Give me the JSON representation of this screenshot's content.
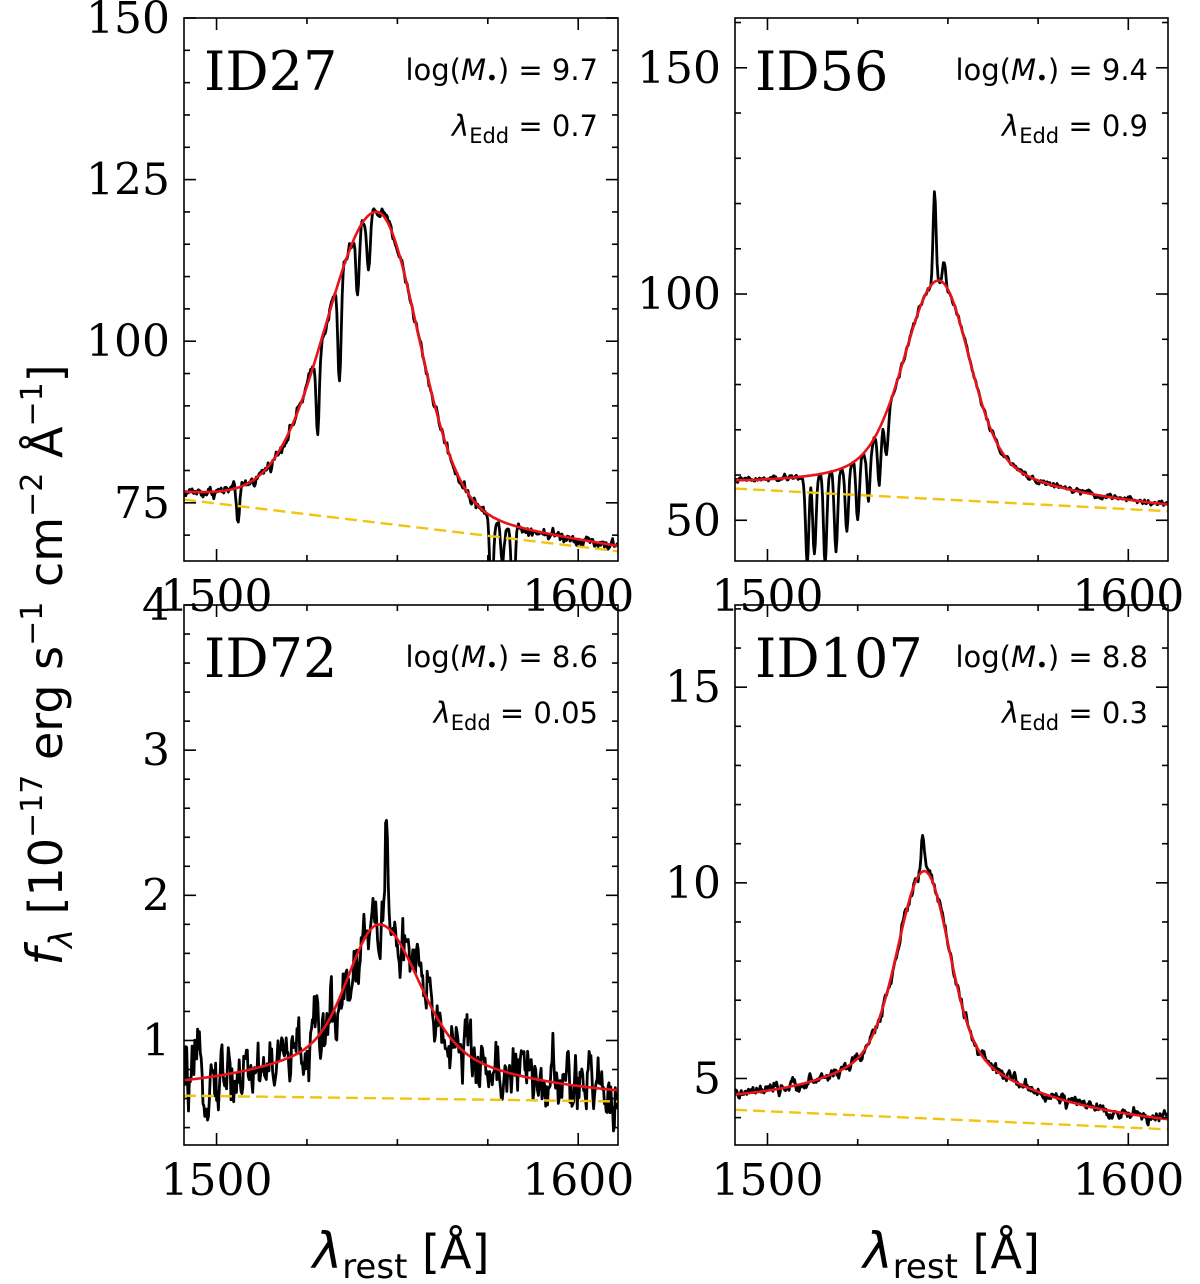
{
  "figure": {
    "ylabel": "f_λ [10^{-17} erg s^{-1} cm^{-2} Å^{-1}]",
    "ylabel_parts": {
      "sym": "f",
      "sym_sub": "λ",
      "open": " [10",
      "exp1": "−17",
      "mid1": " erg s",
      "exp2": "−1",
      "mid2": " cm",
      "exp3": "−2",
      "mid3": " Å",
      "exp4": "−1",
      "close": "]"
    },
    "xlabel_parts": {
      "sym": "λ",
      "sub": "rest",
      "unit": " [Å]"
    },
    "colors": {
      "spectrum": "#000000",
      "fit": "#e8141a",
      "continuum": "#f2c411"
    }
  },
  "chart_data": [
    {
      "type": "line",
      "panel_id": "ID27",
      "annotation": {
        "mass_label": "log(M•) = 9.7",
        "edd_label": "λEdd = 0.7",
        "mass": "9.7",
        "edd": "0.7"
      },
      "xlim": [
        1491,
        1611
      ],
      "ylim": [
        66,
        150
      ],
      "xticks": [
        1500,
        1600
      ],
      "xtick_labels": [
        "1500",
        "1600"
      ],
      "yticks": [
        75,
        100,
        125,
        150
      ],
      "ytick_labels": [
        "75",
        "100",
        "125",
        "150"
      ],
      "xlabel": "",
      "ylabel": "",
      "line": {
        "center": 1544.5,
        "peak": 120,
        "sigma_l": 14,
        "sigma_r": 11,
        "wing_amp": 5,
        "wing_w": 30,
        "skew": 0
      },
      "continuum": [
        [
          1491,
          75.5
        ],
        [
          1611,
          67.5
        ]
      ],
      "noise": 1.2,
      "absorption": [
        [
          1506,
          5
        ],
        [
          1528,
          12
        ],
        [
          1534,
          16
        ],
        [
          1539,
          10
        ],
        [
          1542,
          8
        ],
        [
          1576,
          14
        ],
        [
          1579,
          7
        ],
        [
          1582,
          14
        ]
      ],
      "spikes": []
    },
    {
      "type": "line",
      "panel_id": "ID56",
      "annotation": {
        "mass_label": "log(M•) = 9.4",
        "edd_label": "λEdd = 0.9",
        "mass": "9.4",
        "edd": "0.9"
      },
      "xlim": [
        1491,
        1611
      ],
      "ylim": [
        41,
        161
      ],
      "xticks": [
        1500,
        1600
      ],
      "xtick_labels": [
        "1500",
        "1600"
      ],
      "yticks": [
        50,
        100,
        150
      ],
      "ytick_labels": [
        "50",
        "100",
        "150"
      ],
      "xlabel": "",
      "ylabel": "",
      "line": {
        "center": 1547.5,
        "peak": 103,
        "sigma_l": 9,
        "sigma_r": 8,
        "wing_amp": 12,
        "wing_w": 24,
        "skew": 0
      },
      "continuum": [
        [
          1491,
          57
        ],
        [
          1611,
          52
        ]
      ],
      "noise": 0.9,
      "absorption": [
        [
          1511,
          20
        ],
        [
          1513,
          18
        ],
        [
          1516,
          20
        ],
        [
          1519,
          18
        ],
        [
          1522,
          15
        ],
        [
          1525,
          14
        ],
        [
          1528,
          12
        ],
        [
          1531,
          12
        ],
        [
          1533,
          10
        ]
      ],
      "spikes": [
        [
          1546.3,
          20
        ],
        [
          1549,
          5
        ]
      ]
    },
    {
      "type": "line",
      "panel_id": "ID72",
      "annotation": {
        "mass_label": "log(M•) = 8.6",
        "edd_label": "λEdd = 0.05",
        "mass": "8.6",
        "edd": "0.05"
      },
      "xlim": [
        1491,
        1611
      ],
      "ylim": [
        0.28,
        4
      ],
      "xticks": [
        1500,
        1600
      ],
      "xtick_labels": [
        "1500",
        "1600"
      ],
      "yticks": [
        1,
        2,
        3,
        4
      ],
      "ytick_labels": [
        "1",
        "2",
        "3",
        "4"
      ],
      "xlabel": "rest",
      "ylabel": "",
      "line": {
        "center": 1545,
        "peak": 1.8,
        "sigma_l": 8,
        "sigma_r": 10,
        "wing_amp": 0.45,
        "wing_w": 30,
        "skew": 0
      },
      "continuum": [
        [
          1491,
          0.62
        ],
        [
          1611,
          0.58
        ]
      ],
      "noise": 0.32,
      "absorption": [],
      "spikes": [
        [
          1547,
          0.7
        ]
      ]
    },
    {
      "type": "line",
      "panel_id": "ID107",
      "annotation": {
        "mass_label": "log(M•) = 8.8",
        "edd_label": "λEdd = 0.3",
        "mass": "8.8",
        "edd": "0.3"
      },
      "xlim": [
        1491,
        1611
      ],
      "ylim": [
        3.3,
        17.1
      ],
      "xticks": [
        1500,
        1600
      ],
      "xtick_labels": [
        "1500",
        "1600"
      ],
      "yticks": [
        5,
        10,
        15
      ],
      "ytick_labels": [
        "5",
        "10",
        "15"
      ],
      "xlabel": "rest",
      "ylabel": "",
      "line": {
        "center": 1543.5,
        "peak": 10.3,
        "sigma_l": 7,
        "sigma_r": 6.5,
        "wing_amp": 2.0,
        "wing_w": 26,
        "skew": 0
      },
      "continuum": [
        [
          1491,
          4.2
        ],
        [
          1611,
          3.7
        ]
      ],
      "noise": 0.22,
      "absorption": [],
      "spikes": [
        [
          1543,
          1.0
        ]
      ]
    }
  ]
}
